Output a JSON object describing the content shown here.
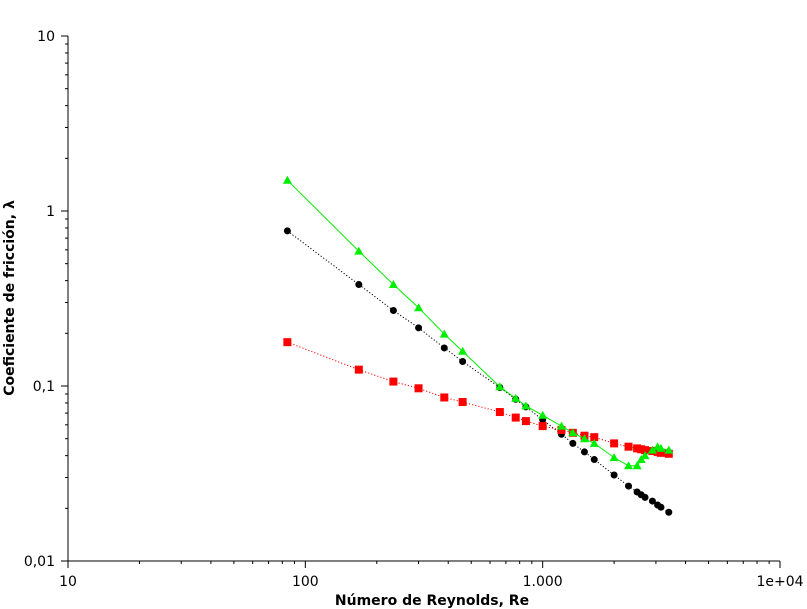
{
  "chart_data": {
    "type": "line",
    "title": "",
    "xlabel": "Número de Reynolds, Re",
    "ylabel": "Coeficiente de fricción, λ",
    "xscale": "log",
    "yscale": "log",
    "xlim": [
      10,
      10000
    ],
    "ylim": [
      0.01,
      10
    ],
    "x_tick_labels": [
      {
        "value": 10,
        "label": "10"
      },
      {
        "value": 100,
        "label": "100"
      },
      {
        "value": 1000,
        "label": "1.000"
      },
      {
        "value": 10000,
        "label": "1e+04"
      }
    ],
    "y_tick_labels": [
      {
        "value": 0.01,
        "label": "0,01"
      },
      {
        "value": 0.1,
        "label": "0,1"
      },
      {
        "value": 1,
        "label": "1"
      },
      {
        "value": 10,
        "label": "10"
      }
    ],
    "grid": false,
    "legend": "none",
    "series": [
      {
        "marker": "circle",
        "line_style": "dotted",
        "color": "#000000",
        "x": [
          84,
          168,
          235,
          300,
          385,
          460,
          660,
          770,
          850,
          1000,
          1200,
          1340,
          1500,
          1650,
          2000,
          2300,
          2500,
          2600,
          2700,
          2900,
          3050,
          3150,
          3400
        ],
        "y": [
          0.77,
          0.38,
          0.27,
          0.215,
          0.165,
          0.138,
          0.098,
          0.084,
          0.076,
          0.064,
          0.053,
          0.047,
          0.042,
          0.038,
          0.031,
          0.0268,
          0.0248,
          0.0239,
          0.0231,
          0.022,
          0.0209,
          0.0203,
          0.019
        ]
      },
      {
        "marker": "square",
        "line_style": "dotted",
        "color": "#ff0000",
        "x": [
          84,
          168,
          235,
          300,
          385,
          460,
          660,
          770,
          850,
          1000,
          1200,
          1340,
          1500,
          1650,
          2000,
          2300,
          2500,
          2600,
          2700,
          2900,
          3050,
          3150,
          3400
        ],
        "y": [
          0.178,
          0.124,
          0.106,
          0.097,
          0.086,
          0.081,
          0.071,
          0.066,
          0.063,
          0.059,
          0.056,
          0.054,
          0.052,
          0.051,
          0.047,
          0.045,
          0.044,
          0.0435,
          0.043,
          0.0425,
          0.042,
          0.0415,
          0.041
        ]
      },
      {
        "marker": "triangle",
        "line_style": "solid",
        "color": "#00ee00",
        "x": [
          84,
          168,
          235,
          300,
          385,
          460,
          660,
          770,
          850,
          1000,
          1200,
          1340,
          1500,
          1650,
          2000,
          2300,
          2500,
          2600,
          2700,
          2900,
          3050,
          3150,
          3400
        ],
        "y": [
          1.5,
          0.59,
          0.38,
          0.28,
          0.198,
          0.158,
          0.099,
          0.085,
          0.077,
          0.068,
          0.059,
          0.054,
          0.05,
          0.047,
          0.039,
          0.035,
          0.035,
          0.038,
          0.04,
          0.043,
          0.045,
          0.044,
          0.043
        ]
      }
    ]
  }
}
